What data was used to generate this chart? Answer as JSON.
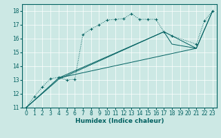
{
  "title": "",
  "xlabel": "Humidex (Indice chaleur)",
  "bg_color": "#cce8e4",
  "line_color": "#006060",
  "xlim": [
    -0.5,
    23.5
  ],
  "ylim": [
    11,
    18.5
  ],
  "xticks": [
    0,
    1,
    2,
    3,
    4,
    5,
    6,
    7,
    8,
    9,
    10,
    11,
    12,
    13,
    14,
    15,
    16,
    17,
    18,
    19,
    20,
    21,
    22,
    23
  ],
  "yticks": [
    11,
    12,
    13,
    14,
    15,
    16,
    17,
    18
  ],
  "series": [
    [
      0,
      11
    ],
    [
      1,
      11.8
    ],
    [
      2,
      12.5
    ],
    [
      3,
      13.1
    ],
    [
      4,
      13.2
    ],
    [
      5,
      13.0
    ],
    [
      6,
      13.05
    ],
    [
      7,
      16.3
    ],
    [
      8,
      16.7
    ],
    [
      9,
      17.0
    ],
    [
      10,
      17.35
    ],
    [
      11,
      17.4
    ],
    [
      12,
      17.45
    ],
    [
      13,
      17.8
    ],
    [
      14,
      17.4
    ],
    [
      15,
      17.4
    ],
    [
      16,
      17.4
    ],
    [
      17,
      16.5
    ],
    [
      18,
      16.2
    ],
    [
      21,
      15.6
    ],
    [
      22,
      17.3
    ],
    [
      23,
      18.0
    ]
  ],
  "line2": [
    [
      0,
      11
    ],
    [
      4,
      13.15
    ],
    [
      21,
      15.3
    ],
    [
      23,
      18.0
    ]
  ],
  "line3": [
    [
      0,
      11
    ],
    [
      4,
      13.05
    ],
    [
      17,
      16.5
    ],
    [
      18,
      15.6
    ],
    [
      21,
      15.3
    ],
    [
      23,
      18.0
    ]
  ],
  "line4": [
    [
      4,
      13.15
    ],
    [
      17,
      16.5
    ],
    [
      21,
      15.3
    ]
  ],
  "grid_color": "#b0d8d2",
  "xlabel_fontsize": 6.5,
  "tick_fontsize": 5.5
}
